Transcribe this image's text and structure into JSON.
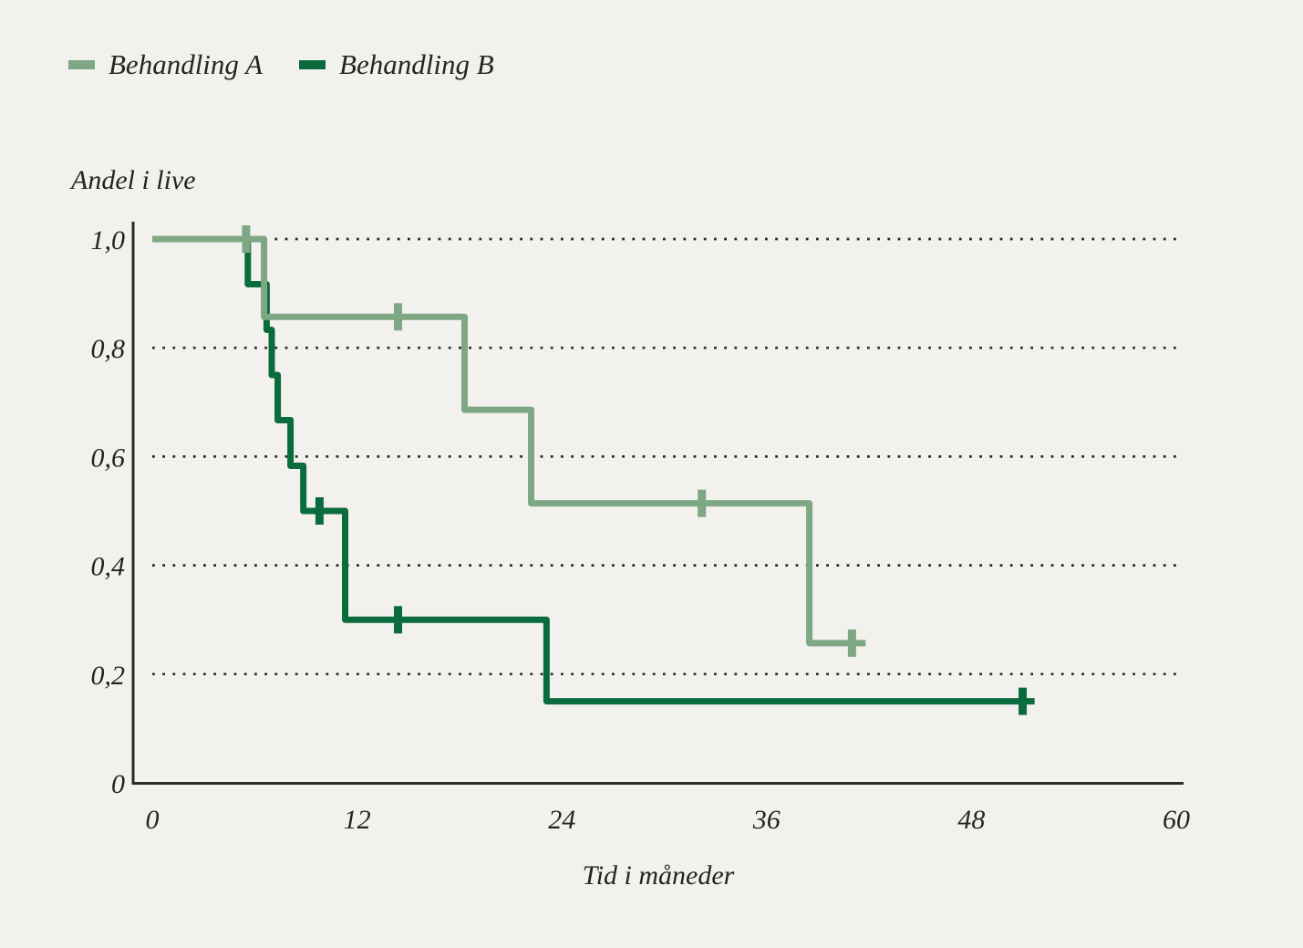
{
  "colors": {
    "background": "#F2F1ED",
    "axis": "#2B2A26",
    "text": "#262420",
    "treatment_a": "#7EA883",
    "treatment_b": "#0A6C3D"
  },
  "legend": {
    "items": [
      {
        "label": "Behandling A",
        "color": "#7EA883"
      },
      {
        "label": "Behandling B",
        "color": "#0A6C3D"
      }
    ]
  },
  "chart_data": {
    "type": "line",
    "subtype": "kaplan-meier-step-curve",
    "title": "",
    "xlabel": "Tid i måneder",
    "ylabel": "Andel i live",
    "xlim": [
      0,
      60
    ],
    "ylim": [
      0,
      1.0
    ],
    "grid": "horizontal dotted lines at 0.2 intervals",
    "legend_position": "top-left",
    "x_ticks": [
      {
        "value": 0,
        "label": "0"
      },
      {
        "value": 12,
        "label": "12"
      },
      {
        "value": 24,
        "label": "24"
      },
      {
        "value": 36,
        "label": "36"
      },
      {
        "value": 48,
        "label": "48"
      },
      {
        "value": 60,
        "label": "60"
      }
    ],
    "y_ticks": [
      {
        "value": 1.0,
        "label": "1,0"
      },
      {
        "value": 0.8,
        "label": "0,8"
      },
      {
        "value": 0.6,
        "label": "0,6"
      },
      {
        "value": 0.4,
        "label": "0,4"
      },
      {
        "value": 0.2,
        "label": "0,2"
      },
      {
        "value": 0.0,
        "label": "0"
      }
    ],
    "series": [
      {
        "name": "Behandling A",
        "color": "#7EA883",
        "unit_x": "months",
        "unit_y": "survival probability",
        "steps": [
          [
            0,
            1.0
          ],
          [
            6.55,
            0.857
          ],
          [
            18.3,
            0.686
          ],
          [
            22.2,
            0.514
          ],
          [
            38.5,
            0.257
          ]
        ],
        "end_time": 41.8,
        "censor_marks": [
          [
            5.5,
            1.0
          ],
          [
            14.4,
            0.857
          ],
          [
            32.2,
            0.514
          ],
          [
            41.0,
            0.257
          ]
        ]
      },
      {
        "name": "Behandling B",
        "color": "#0A6C3D",
        "unit_x": "months",
        "unit_y": "survival probability",
        "steps": [
          [
            0,
            1.0
          ],
          [
            5.6,
            0.917
          ],
          [
            6.7,
            0.833
          ],
          [
            7.0,
            0.75
          ],
          [
            7.35,
            0.667
          ],
          [
            8.1,
            0.583
          ],
          [
            8.85,
            0.5
          ],
          [
            11.3,
            0.3
          ],
          [
            23.1,
            0.15
          ]
        ],
        "end_time": 51.7,
        "censor_marks": [
          [
            9.8,
            0.5
          ],
          [
            14.4,
            0.3
          ],
          [
            51.0,
            0.15
          ]
        ]
      }
    ]
  }
}
